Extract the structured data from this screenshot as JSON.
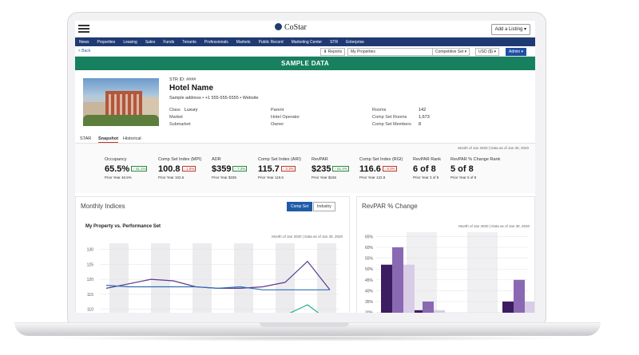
{
  "header": {
    "logo": "CoStar",
    "add_listing": "Add a Listing ▾"
  },
  "nav": [
    "News",
    "Properties",
    "Leasing",
    "Sales",
    "Funds",
    "Tenants",
    "Professionals",
    "Markets",
    "Public Record",
    "Marketing Center",
    "STR",
    "Enterprise"
  ],
  "toolbar": {
    "back": "< Back",
    "reports": "⬇ Reports",
    "my_properties": "My Properties",
    "comp_set": "Competitive Set ▾",
    "currency": "USD ($) ▾",
    "admin": "Admin ▾"
  },
  "banner": "SAMPLE DATA",
  "hotel": {
    "str_id": "STR ID: ####",
    "name": "Hotel Name",
    "address": "Sample address  •  +1 555-555-5555  •  Website",
    "class_label": "Class",
    "class_value": "Luxury",
    "market_label": "Market",
    "submarket_label": "Submarket",
    "parent_label": "Parent",
    "operator_label": "Hotel Operator",
    "owner_label": "Owner",
    "rooms_label": "Rooms",
    "rooms_value": "142",
    "comp_rooms_label": "Comp Set Rooms",
    "comp_rooms_value": "1,673",
    "comp_members_label": "Comp Set Members",
    "comp_members_value": "8"
  },
  "tabs": [
    "STAR",
    "Snapshot",
    "Historical"
  ],
  "as_of": "Month of Jan 2020 | Data as of Jan 30, 2020",
  "kpis": [
    {
      "label": "Occupancy",
      "value": "65.5%",
      "badge": "↑ 41.1%",
      "dir": "up",
      "prior": "Prior Year  46.5%"
    },
    {
      "label": "Comp Set Index (MPI)",
      "value": "100.8",
      "badge": "↓ 1.8%",
      "dir": "down",
      "prior": "Prior Year  102.6"
    },
    {
      "label": "ADR",
      "value": "$359",
      "badge": "↑ 7.3%",
      "dir": "up",
      "prior": "Prior Year  $335"
    },
    {
      "label": "Comp Set Index (ARI)",
      "value": "115.7",
      "badge": "↓ 3.3%",
      "dir": "down",
      "prior": "Prior Year  119.6"
    },
    {
      "label": "RevPAR",
      "value": "$235",
      "badge": "↑ 51.4%",
      "dir": "up",
      "prior": "Prior Year  $156"
    },
    {
      "label": "Comp Set Index (RGI)",
      "value": "116.6",
      "badge": "↓ 5.0%",
      "dir": "down",
      "prior": "Prior Year  122.8"
    },
    {
      "label": "RevPAR Rank",
      "value": "6 of 8",
      "badge": "",
      "dir": "",
      "prior": "Prior Year  3 of 8"
    },
    {
      "label": "RevPAR % Change Rank",
      "value": "5 of 8",
      "badge": "",
      "dir": "",
      "prior": "Prior Year  5 of 8"
    }
  ],
  "monthly": {
    "title": "Monthly Indices",
    "toggle_on": "Comp Set",
    "toggle_off": "Industry",
    "subtitle": "My Property vs. Performance Set",
    "as_of": "Month of Jan 2020 | Data as of Jan 30, 2020"
  },
  "revpar_panel": {
    "title": "RevPAR % Change",
    "as_of": "Month of Jan 2020 | Data as of Jan 30, 2020"
  },
  "chart_data": [
    {
      "type": "line",
      "title": "My Property vs. Performance Set",
      "ylim": [
        107,
        132
      ],
      "y_ticks": [
        110,
        115,
        120,
        125,
        130
      ],
      "series": [
        {
          "color": "#5b3a92",
          "values": [
            117,
            118.5,
            120,
            119.5,
            117.5,
            117,
            117,
            117.5,
            119,
            126,
            116.5
          ]
        },
        {
          "color": "#2f6fb3",
          "values": [
            118,
            117.5,
            117.5,
            117.5,
            117.5,
            117,
            117.5,
            116.5,
            116.5,
            116.5,
            116.5
          ]
        },
        {
          "color": "#27b08a",
          "values": [
            null,
            null,
            null,
            null,
            null,
            null,
            null,
            null,
            108,
            111.5,
            106
          ]
        }
      ]
    },
    {
      "type": "bar",
      "title": "RevPAR % Change",
      "ylim": [
        28,
        67
      ],
      "y_ticks": [
        "30%",
        "35%",
        "40%",
        "45%",
        "50%",
        "55%",
        "60%",
        "65%"
      ],
      "series": [
        {
          "color": "#3d1d62",
          "values": [
            52,
            31,
            null,
            null,
            35
          ]
        },
        {
          "color": "#8a69b3",
          "values": [
            60,
            35,
            null,
            28.5,
            45
          ]
        },
        {
          "color": "#d8cce6",
          "values": [
            52,
            31,
            null,
            null,
            35
          ]
        }
      ]
    }
  ]
}
